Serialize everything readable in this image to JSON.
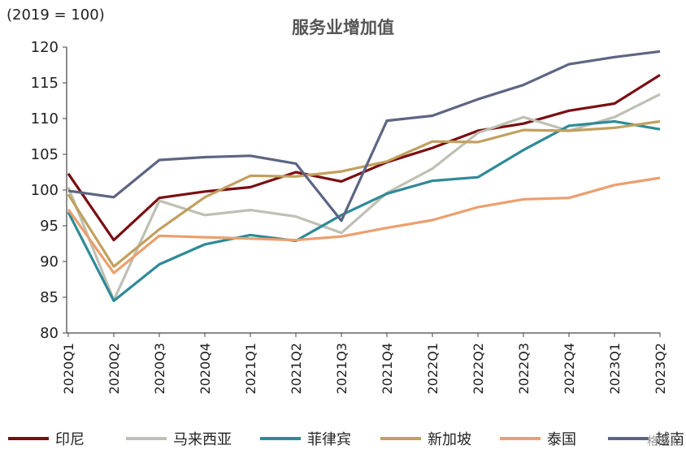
{
  "unit_label": "(2019 = 100)",
  "watermark": "格隆汇",
  "chart_data": {
    "type": "line",
    "title": "服务业增加值",
    "xlabel": "",
    "ylabel": "",
    "ylim": [
      80,
      120
    ],
    "yticks": [
      80,
      85,
      90,
      95,
      100,
      105,
      110,
      115,
      120
    ],
    "categories": [
      "2020Q1",
      "2020Q2",
      "2020Q3",
      "2020Q4",
      "2021Q1",
      "2021Q2",
      "2021Q3",
      "2021Q4",
      "2022Q1",
      "2022Q2",
      "2022Q3",
      "2022Q4",
      "2023Q1",
      "2023Q2"
    ],
    "legend_position": "bottom",
    "grid": false,
    "series": [
      {
        "name": "印尼",
        "color": "#7a0e12",
        "values": [
          102.3,
          93.0,
          98.9,
          99.8,
          100.4,
          102.5,
          101.2,
          103.9,
          105.9,
          108.3,
          109.3,
          111.1,
          112.1,
          116.1
        ]
      },
      {
        "name": "马来西亚",
        "color": "#bfc0b4",
        "values": [
          100.4,
          84.6,
          98.5,
          96.5,
          97.2,
          96.3,
          94.0,
          99.6,
          103.0,
          108.0,
          110.2,
          108.3,
          110.2,
          113.4
        ]
      },
      {
        "name": "菲律宾",
        "color": "#2f8a97",
        "values": [
          96.9,
          84.5,
          89.6,
          92.4,
          93.7,
          92.9,
          96.5,
          99.5,
          101.3,
          101.8,
          105.6,
          109.0,
          109.6,
          108.5
        ]
      },
      {
        "name": "新加坡",
        "color": "#c1a05e",
        "values": [
          99.4,
          89.3,
          94.5,
          99.0,
          102.0,
          101.9,
          102.6,
          104.0,
          106.8,
          106.7,
          108.4,
          108.3,
          108.7,
          109.6
        ]
      },
      {
        "name": "泰国",
        "color": "#eb9f6e",
        "values": [
          97.3,
          88.4,
          93.6,
          93.4,
          93.2,
          93.0,
          93.5,
          94.7,
          95.8,
          97.6,
          98.7,
          98.9,
          100.7,
          101.7
        ]
      },
      {
        "name": "越南",
        "color": "#5d6583",
        "values": [
          99.9,
          99.0,
          104.2,
          104.6,
          104.8,
          103.7,
          95.7,
          109.7,
          110.4,
          112.7,
          114.7,
          117.6,
          118.6,
          119.4
        ]
      }
    ]
  }
}
